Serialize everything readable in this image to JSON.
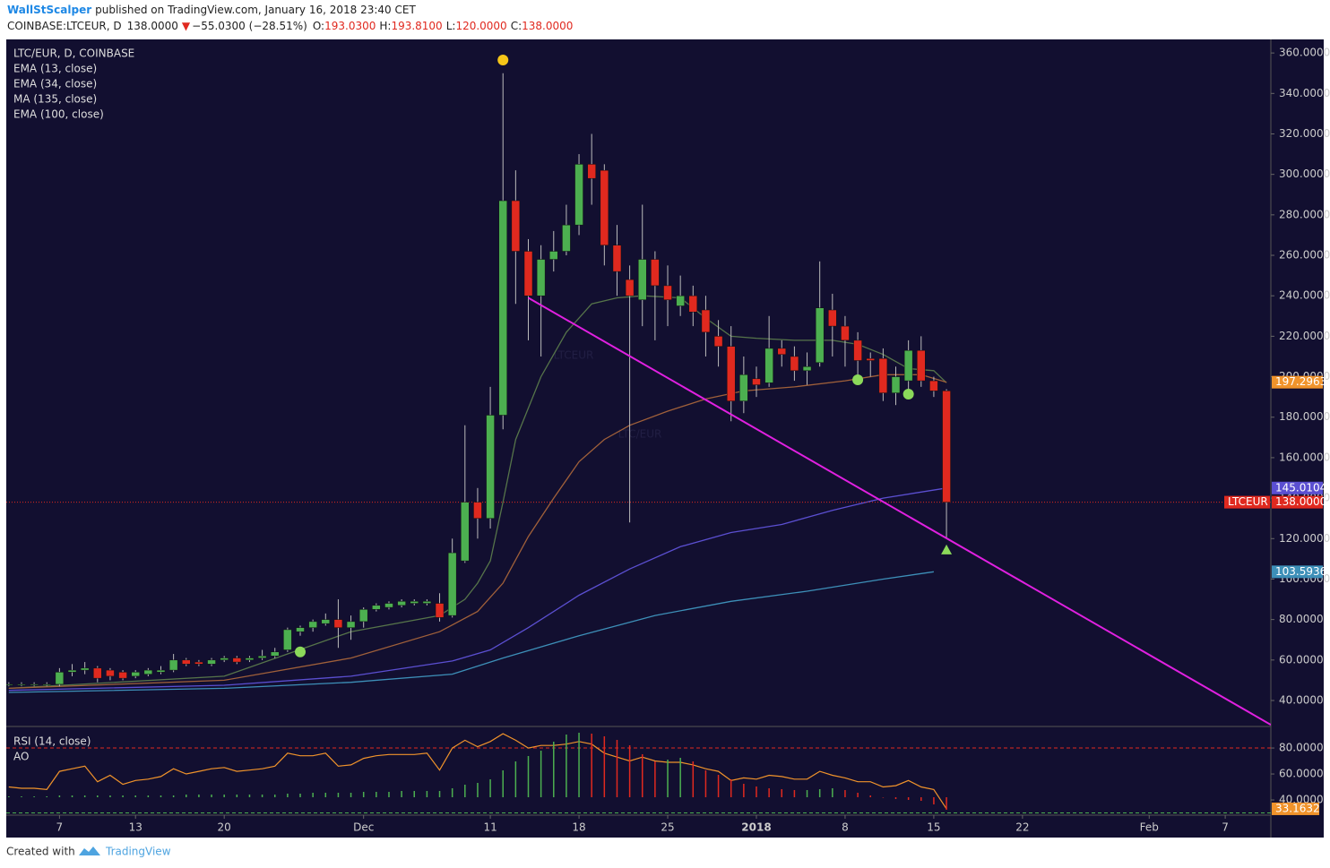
{
  "header": {
    "author": "WallStScalper",
    "published": "published on TradingView.com, January 16, 2018 23:40 CET",
    "symbol": "COINBASE:LTCEUR, D",
    "last": "138.0000",
    "arrow": "▼",
    "change": "−55.0300 (−28.51%)",
    "o_label": "O:",
    "open": "193.0300",
    "h_label": "H:",
    "high": "193.8100",
    "l_label": "L:",
    "low": "120.0000",
    "c_label": "C:",
    "close": "138.0000"
  },
  "footer": {
    "created": "Created with",
    "brand": "TradingView"
  },
  "chart_data": [
    {
      "type": "candlestick",
      "title": "LTC/EUR, D, COINBASE",
      "watermark": "LTCEUR",
      "watermark_sub": "LTC/EUR",
      "up_color": "#4caf50",
      "down_color": "#e0291f",
      "xlim": [
        2.8,
        102.6
      ],
      "xticks": [
        {
          "value": 7,
          "label": "7"
        },
        {
          "value": 13,
          "label": "13"
        },
        {
          "value": 20,
          "label": "20"
        },
        {
          "value": 31,
          "label": "Dec"
        },
        {
          "value": 41,
          "label": "11"
        },
        {
          "value": 48,
          "label": "18"
        },
        {
          "value": 55,
          "label": "25"
        },
        {
          "value": 62,
          "label": "2018"
        },
        {
          "value": 69,
          "label": "8"
        },
        {
          "value": 76,
          "label": "15"
        },
        {
          "value": 83,
          "label": "22"
        },
        {
          "value": 93,
          "label": "Feb"
        },
        {
          "value": 99,
          "label": "7"
        }
      ],
      "ylim": [
        27.6,
        366.7
      ],
      "yticks": [
        {
          "value": 40,
          "label": "40.0000"
        },
        {
          "value": 60,
          "label": "60.0000"
        },
        {
          "value": 80,
          "label": "80.0000"
        },
        {
          "value": 100,
          "label": "100.0000"
        },
        {
          "value": 120,
          "label": "120.0000"
        },
        {
          "value": 140,
          "label": "140.0000"
        },
        {
          "value": 160,
          "label": "160.0000"
        },
        {
          "value": 180,
          "label": "180.0000"
        },
        {
          "value": 200,
          "label": "200.0000"
        },
        {
          "value": 220,
          "label": "220.0000"
        },
        {
          "value": 240,
          "label": "240.0000"
        },
        {
          "value": 260,
          "label": "260.0000"
        },
        {
          "value": 280,
          "label": "280.0000"
        },
        {
          "value": 300,
          "label": "300.0000"
        },
        {
          "value": 320,
          "label": "320.0000"
        },
        {
          "value": 340,
          "label": "340.0000"
        },
        {
          "value": 360,
          "label": "360.0000"
        }
      ],
      "x": [
        3,
        4,
        5,
        6,
        7,
        8,
        9,
        10,
        11,
        12,
        13,
        14,
        15,
        16,
        17,
        18,
        19,
        20,
        21,
        22,
        23,
        24,
        25,
        26,
        27,
        28,
        29,
        30,
        31,
        32,
        33,
        34,
        35,
        36,
        37,
        38,
        39,
        40,
        41,
        42,
        43,
        44,
        45,
        46,
        47,
        48,
        49,
        50,
        51,
        52,
        53,
        54,
        55,
        56,
        57,
        58,
        59,
        60,
        61,
        62,
        63,
        64,
        65,
        66,
        67,
        68,
        69,
        70,
        71,
        72,
        73,
        74,
        75,
        76,
        77
      ],
      "open": [
        48,
        48,
        48,
        48,
        48,
        54,
        55,
        56,
        55,
        54,
        52,
        53,
        54,
        55,
        60,
        59,
        58,
        60,
        61,
        60,
        61,
        62,
        65,
        74,
        76,
        78,
        80,
        76,
        79,
        85,
        86,
        87,
        88,
        88,
        88,
        82,
        109,
        138,
        130,
        181,
        287,
        262,
        240,
        258,
        262,
        275,
        305,
        302,
        265,
        248,
        238,
        258,
        245,
        235,
        240,
        233,
        220,
        215,
        188,
        199,
        197,
        214,
        210,
        203,
        207,
        233,
        225,
        218,
        209,
        209,
        192,
        198,
        213,
        198,
        193.03
      ],
      "high": [
        49,
        49,
        49,
        49,
        56,
        58,
        59,
        57,
        56,
        55,
        55,
        56,
        57,
        63,
        61,
        60,
        61,
        62,
        62,
        62,
        65,
        66,
        76,
        77,
        80,
        83,
        90,
        82,
        86,
        88,
        89,
        90,
        90,
        90,
        93,
        120,
        176,
        145,
        195,
        350,
        302,
        268,
        265,
        272,
        285,
        310,
        320,
        305,
        275,
        255,
        285,
        262,
        255,
        250,
        245,
        240,
        228,
        225,
        210,
        205,
        230,
        218,
        215,
        212,
        257,
        241,
        230,
        222,
        212,
        214,
        205,
        218,
        220,
        200,
        193.81
      ],
      "low": [
        47,
        47,
        47,
        47,
        47,
        52,
        53,
        49,
        50,
        50,
        51,
        52,
        53,
        54,
        57,
        57,
        57,
        59,
        58,
        59,
        60,
        61,
        64,
        72,
        74,
        77,
        66,
        70,
        76,
        84,
        85,
        86,
        87,
        87,
        79,
        81,
        108,
        120,
        125,
        174,
        236,
        218,
        210,
        252,
        260,
        270,
        285,
        255,
        240,
        128,
        225,
        218,
        225,
        230,
        225,
        210,
        205,
        178,
        182,
        190,
        195,
        205,
        198,
        196,
        205,
        210,
        205,
        200,
        200,
        188,
        186,
        190,
        195,
        190,
        120
      ],
      "close": [
        48,
        48,
        48,
        48,
        54,
        55,
        56,
        51,
        52,
        51,
        54,
        55,
        55,
        60,
        58,
        58,
        60,
        61,
        59,
        61,
        62,
        64,
        75,
        76,
        79,
        80,
        76,
        79,
        85,
        87,
        88,
        89,
        89,
        89,
        81,
        113,
        138,
        130,
        181,
        287,
        262,
        240,
        258,
        262,
        275,
        305,
        298,
        265,
        252,
        240,
        258,
        245,
        238,
        240,
        232,
        222,
        215,
        188,
        201,
        196,
        214,
        211,
        203,
        205,
        234,
        225,
        218,
        208,
        208,
        192,
        200,
        213,
        198,
        193,
        138
      ],
      "series": [
        {
          "name": "EMA (13, close)",
          "color": "#56744a",
          "x": [
            3,
            20,
            30,
            37,
            39,
            40,
            41,
            42,
            43,
            45,
            47,
            49,
            51,
            53,
            56,
            58,
            60,
            62,
            65,
            68,
            70,
            72,
            74,
            76,
            77
          ],
          "values": [
            46,
            52,
            74,
            82,
            90,
            98,
            109,
            138,
            169,
            200,
            222,
            236,
            239,
            240,
            239,
            229,
            220,
            219,
            218,
            218,
            216,
            211,
            204,
            203,
            197
          ]
        },
        {
          "name": "EMA (34, close)",
          "color": "#a0603a",
          "x": [
            3,
            20,
            30,
            37,
            40,
            42,
            44,
            46,
            48,
            50,
            52,
            55,
            58,
            61,
            65,
            69,
            72,
            75,
            77
          ],
          "values": [
            46,
            50,
            61,
            74,
            84,
            98,
            121,
            140,
            158,
            169,
            176,
            183,
            189,
            193,
            195,
            198,
            201,
            201,
            197.2963
          ]
        },
        {
          "name": "MA (135, close)",
          "color": "#3d8fb8",
          "x": [
            3,
            20,
            30,
            38,
            42,
            48,
            54,
            60,
            66,
            72,
            76
          ],
          "values": [
            44,
            46,
            49,
            53,
            61,
            72,
            82,
            89,
            94,
            100,
            103.5936
          ]
        },
        {
          "name": "EMA (100, close)",
          "color": "#5b4fd1",
          "x": [
            3,
            20,
            30,
            38,
            41,
            44,
            48,
            52,
            56,
            60,
            64,
            68,
            72,
            77
          ],
          "values": [
            45,
            47.5,
            52,
            59.5,
            65,
            76,
            92,
            105,
            116,
            123,
            127,
            134,
            140,
            145.0104
          ]
        }
      ],
      "price_line_color": "#e0291f",
      "price_tags": [
        {
          "value": 197.2963,
          "label": "197.2963",
          "color": "#f0932b"
        },
        {
          "value": 145.0104,
          "label": "145.0104",
          "color": "#5b4fd1"
        },
        {
          "value": 138,
          "label": "138.0000",
          "color": "#e0291f"
        },
        {
          "value": 103.5936,
          "label": "103.5936",
          "color": "#3d8fb8"
        }
      ],
      "symbol_tag": "LTCEUR",
      "trendline": {
        "color": "#e020e0",
        "x": [
          44,
          102.6
        ],
        "y": [
          239,
          28
        ]
      },
      "markers": [
        {
          "shape": "circle",
          "color": "#f5c518",
          "x": 42,
          "y": 356.5
        },
        {
          "shape": "circle",
          "color": "#8bd95a",
          "x": 26,
          "y": 64
        },
        {
          "shape": "circle",
          "color": "#8bd95a",
          "x": 70,
          "y": 198.5
        },
        {
          "shape": "circle",
          "color": "#8bd95a",
          "x": 74,
          "y": 191.4
        },
        {
          "shape": "triangle",
          "color": "#8bd95a",
          "x": 77,
          "y": 114.4
        }
      ]
    },
    {
      "type": "oscillator",
      "title": "RSI (14, close)",
      "subtitle": "AO",
      "ylim": [
        28.3,
        95.9
      ],
      "yticks": [
        {
          "value": 40,
          "label": "40.0000"
        },
        {
          "value": 60,
          "label": "60.0000"
        },
        {
          "value": 80,
          "label": "80.0000"
        }
      ],
      "y2lim": [
        -20,
        78
      ],
      "hlines": [
        {
          "value": 80,
          "color": "#e0291f"
        },
        {
          "value": 30,
          "color": "#4caf50"
        }
      ],
      "series": [
        {
          "name": "RSI (14, close)",
          "color": "#f0932b",
          "values": [
            50,
            49,
            49,
            48,
            62,
            64,
            66,
            54,
            59,
            52,
            55,
            56,
            58,
            64,
            60,
            62,
            64,
            65,
            62,
            63,
            64,
            66,
            76,
            74,
            74,
            76,
            66,
            67,
            72,
            74,
            75,
            75,
            75,
            76,
            63,
            80,
            86,
            81,
            85,
            91,
            86,
            80,
            82,
            82,
            83,
            85,
            83,
            76,
            73,
            70,
            73,
            70,
            69,
            69,
            67,
            64,
            62,
            55,
            57,
            56,
            59,
            58,
            56,
            56,
            62,
            59,
            57,
            54,
            54,
            50,
            51,
            55,
            50,
            48,
            33.1632
          ]
        },
        {
          "name": "AO",
          "axis": "y2",
          "up_color": "#4caf50",
          "down_color": "#e0291f",
          "values": [
            1,
            1,
            1,
            1,
            2,
            2,
            2,
            2,
            2,
            2,
            2,
            2,
            2,
            2,
            3,
            3,
            3,
            3,
            3,
            3,
            3,
            3,
            4,
            4,
            5,
            5,
            5,
            5,
            6,
            6,
            6,
            7,
            7,
            7,
            7,
            10,
            14,
            16,
            20,
            30,
            40,
            46,
            52,
            62,
            70,
            72,
            71,
            68,
            64,
            58,
            48,
            40,
            42,
            44,
            40,
            30,
            25,
            20,
            15,
            12,
            10,
            9,
            8,
            8,
            9,
            10,
            8,
            5,
            2,
            0,
            -2,
            -3,
            -4,
            -8,
            -14
          ]
        }
      ],
      "last_tag": {
        "value": 33.1632,
        "label": "33.1632",
        "color": "#f0932b"
      }
    }
  ]
}
